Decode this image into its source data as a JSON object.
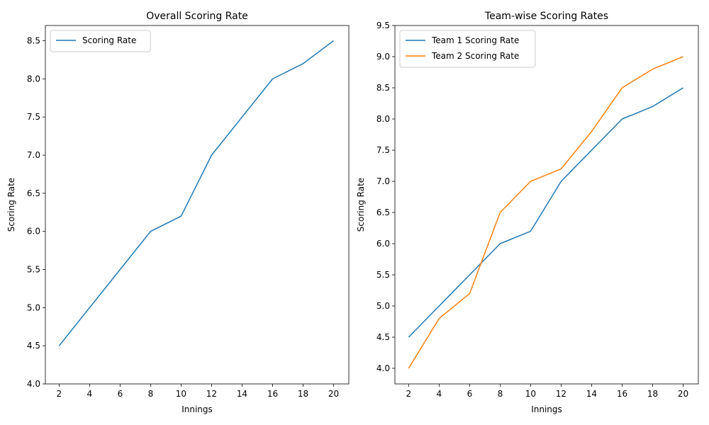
{
  "chart_data": [
    {
      "type": "line",
      "title": "Overall Scoring Rate",
      "xlabel": "Innings",
      "ylabel": "Scoring Rate",
      "x": [
        2,
        4,
        6,
        8,
        10,
        12,
        14,
        16,
        18,
        20
      ],
      "xticks": [
        2,
        4,
        6,
        8,
        10,
        12,
        14,
        16,
        18,
        20
      ],
      "yticks": [
        4.0,
        4.5,
        5.0,
        5.5,
        6.0,
        6.5,
        7.0,
        7.5,
        8.0,
        8.5
      ],
      "xlim": [
        1.1,
        21.0
      ],
      "ylim": [
        4.0,
        8.7
      ],
      "legend": "top-left",
      "grid": false,
      "series": [
        {
          "name": "Scoring Rate",
          "color": "#1f77b4",
          "values": [
            4.5,
            5.0,
            5.5,
            6.0,
            6.2,
            7.0,
            7.5,
            8.0,
            8.2,
            8.5
          ]
        }
      ]
    },
    {
      "type": "line",
      "title": "Team-wise Scoring Rates",
      "xlabel": "Innings",
      "ylabel": "Scoring Rate",
      "x": [
        2,
        4,
        6,
        8,
        10,
        12,
        14,
        16,
        18,
        20
      ],
      "xticks": [
        2,
        4,
        6,
        8,
        10,
        12,
        14,
        16,
        18,
        20
      ],
      "yticks": [
        4.0,
        4.5,
        5.0,
        5.5,
        6.0,
        6.5,
        7.0,
        7.5,
        8.0,
        8.5,
        9.0,
        9.5
      ],
      "xlim": [
        1.1,
        21.0
      ],
      "ylim": [
        3.75,
        9.5
      ],
      "legend": "top-left",
      "grid": false,
      "series": [
        {
          "name": "Team 1 Scoring Rate",
          "color": "#1f77b4",
          "values": [
            4.5,
            5.0,
            5.5,
            6.0,
            6.2,
            7.0,
            7.5,
            8.0,
            8.2,
            8.5
          ]
        },
        {
          "name": "Team 2 Scoring Rate",
          "color": "#ff7f0e",
          "values": [
            4.0,
            4.8,
            5.2,
            6.5,
            7.0,
            7.2,
            7.8,
            8.5,
            8.8,
            9.0
          ]
        }
      ]
    }
  ]
}
